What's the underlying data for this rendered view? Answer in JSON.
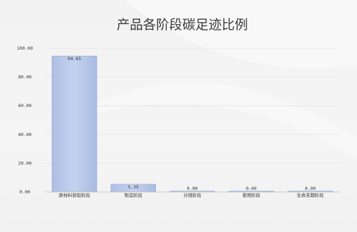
{
  "chart_data": {
    "type": "bar",
    "title": "产品各阶段碳足迹比例",
    "categories": [
      "原材料获取阶段",
      "制造阶段",
      "分销阶段",
      "使用阶段",
      "生命末期阶段"
    ],
    "values": [
      94.65,
      5.35,
      0.0,
      0.0,
      0.0
    ],
    "value_labels": [
      "94.65",
      "5.35",
      "0.00",
      "0.00",
      "0.00"
    ],
    "ylim": [
      0,
      100
    ],
    "yticks": [
      "0.00",
      "20.00",
      "40.00",
      "60.00",
      "80.00",
      "100.00"
    ],
    "ytick_values": [
      0,
      20,
      40,
      60,
      80,
      100
    ],
    "grid": true,
    "bar_color": "#b9c9ea",
    "bar_edge_color": "#8ea3d2"
  }
}
